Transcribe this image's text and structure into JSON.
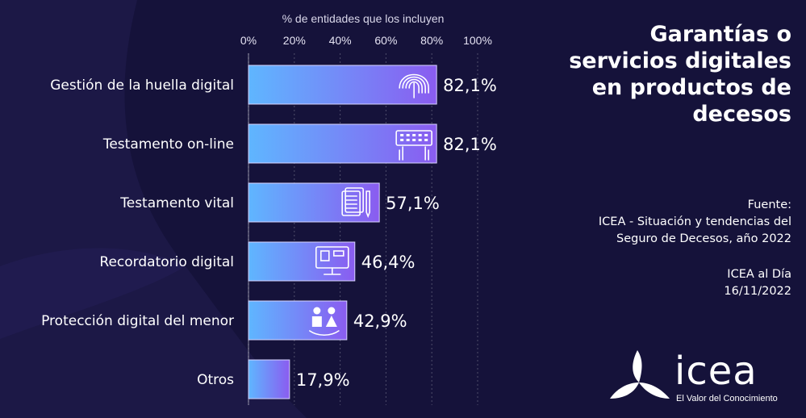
{
  "title_lines": [
    "Garantías o",
    "servicios digitales",
    "en productos de",
    "decesos"
  ],
  "source": {
    "label": "Fuente:",
    "line1": "ICEA - Situación y tendencias del",
    "line2": "Seguro de Decesos, año 2022"
  },
  "publication": {
    "name": "ICEA al Día",
    "date": "16/11/2022"
  },
  "logo": {
    "word": "icea",
    "tagline": "El Valor del Conocimiento"
  },
  "colors": {
    "background": "#15123a",
    "bar_gradient_start": "#5fb6ff",
    "bar_gradient_end": "#8a5cf0",
    "bar_border": "#d8d4ff",
    "grid": "#ffffff",
    "text": "#ffffff"
  },
  "chart_data": {
    "type": "bar",
    "orientation": "horizontal",
    "xlabel": "% de entidades que los incluyen",
    "x_axis_position": "top",
    "xlim": [
      0,
      100
    ],
    "ticks": [
      0,
      20,
      40,
      60,
      80,
      100
    ],
    "tick_labels": [
      "0%",
      "20%",
      "40%",
      "60%",
      "80%",
      "100%"
    ],
    "grid": true,
    "legend": "none",
    "categories": [
      "Gestión de la huella digital",
      "Testamento on-line",
      "Testamento vital",
      "Recordatorio digital",
      "Protección digital del menor",
      "Otros"
    ],
    "values": [
      82.1,
      82.1,
      57.1,
      46.4,
      42.9,
      17.9
    ],
    "value_labels": [
      "82,1%",
      "82,1%",
      "57,1%",
      "46,4%",
      "42,9%",
      "17,9%"
    ],
    "icons": [
      "fingerprint-icon",
      "keyboard-hands-icon",
      "document-pen-icon",
      "monitor-icon",
      "children-icon",
      ""
    ]
  }
}
